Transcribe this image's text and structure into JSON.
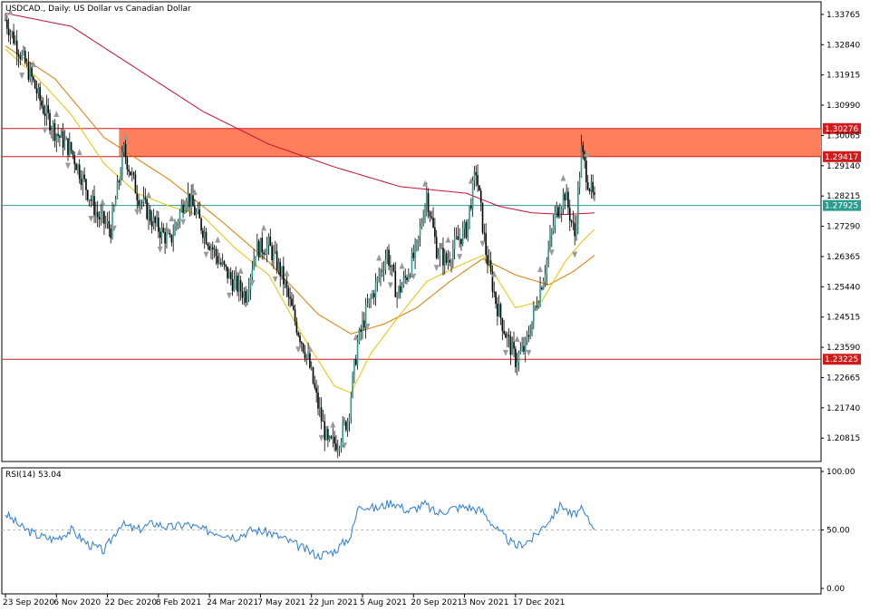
{
  "chart_data": {
    "type": "candlestick",
    "title": "USDCAD., Daily:  US Dollar vs Canadian Dollar",
    "x_ticks": [
      "23 Sep 2020",
      "6 Nov 2020",
      "22 Dec 2020",
      "8 Feb 2021",
      "24 Mar 2021",
      "7 May 2021",
      "22 Jun 2021",
      "5 Aug 2021",
      "20 Sep 2021",
      "3 Nov 2021",
      "17 Dec 2021"
    ],
    "price_ticks": [
      "1.33765",
      "1.32840",
      "1.31915",
      "1.30990",
      "1.30065",
      "1.29140",
      "1.28215",
      "1.27290",
      "1.26365",
      "1.25440",
      "1.24515",
      "1.23590",
      "1.22665",
      "1.21740",
      "1.20815"
    ],
    "ylim": [
      1.201,
      1.3415
    ],
    "levels": [
      {
        "label": "1.30276",
        "value": 1.30276,
        "color": "#d11a1a"
      },
      {
        "label": "1.29417",
        "value": 1.29417,
        "color": "#d11a1a"
      },
      {
        "label": "1.27925",
        "value": 1.27925,
        "color": "#2a9d8f"
      },
      {
        "label": "1.23225",
        "value": 1.23225,
        "color": "#d11a1a"
      }
    ],
    "resistance_zone": {
      "from": 1.29417,
      "to": 1.30276,
      "color": "#ff7f5c"
    },
    "close_path": [
      [
        0,
        1.336
      ],
      [
        8,
        1.327
      ],
      [
        16,
        1.318
      ],
      [
        22,
        1.31
      ],
      [
        30,
        1.302
      ],
      [
        40,
        1.296
      ],
      [
        48,
        1.286
      ],
      [
        56,
        1.276
      ],
      [
        64,
        1.272
      ],
      [
        72,
        1.296
      ],
      [
        80,
        1.283
      ],
      [
        90,
        1.274
      ],
      [
        100,
        1.268
      ],
      [
        110,
        1.283
      ],
      [
        120,
        1.272
      ],
      [
        130,
        1.262
      ],
      [
        138,
        1.256
      ],
      [
        146,
        1.252
      ],
      [
        152,
        1.266
      ],
      [
        160,
        1.267
      ],
      [
        168,
        1.258
      ],
      [
        176,
        1.244
      ],
      [
        184,
        1.232
      ],
      [
        190,
        1.218
      ],
      [
        196,
        1.206
      ],
      [
        202,
        1.207
      ],
      [
        208,
        1.214
      ],
      [
        214,
        1.237
      ],
      [
        220,
        1.248
      ],
      [
        226,
        1.256
      ],
      [
        232,
        1.265
      ],
      [
        238,
        1.252
      ],
      [
        244,
        1.258
      ],
      [
        250,
        1.266
      ],
      [
        256,
        1.283
      ],
      [
        262,
        1.266
      ],
      [
        268,
        1.262
      ],
      [
        274,
        1.268
      ],
      [
        280,
        1.272
      ],
      [
        286,
        1.29
      ],
      [
        292,
        1.265
      ],
      [
        298,
        1.25
      ],
      [
        304,
        1.24
      ],
      [
        310,
        1.232
      ],
      [
        316,
        1.236
      ],
      [
        322,
        1.248
      ],
      [
        328,
        1.26
      ],
      [
        334,
        1.276
      ],
      [
        340,
        1.283
      ],
      [
        346,
        1.27
      ],
      [
        350,
        1.296
      ],
      [
        354,
        1.287
      ],
      [
        358,
        1.28
      ]
    ],
    "ma_series": [
      {
        "color": "#c8102e",
        "points": [
          [
            0,
            1.338
          ],
          [
            40,
            1.334
          ],
          [
            80,
            1.321
          ],
          [
            120,
            1.308
          ],
          [
            160,
            1.298
          ],
          [
            200,
            1.291
          ],
          [
            240,
            1.285
          ],
          [
            280,
            1.283
          ],
          [
            300,
            1.279
          ],
          [
            320,
            1.277
          ],
          [
            340,
            1.2765
          ],
          [
            358,
            1.277
          ]
        ]
      },
      {
        "color": "#e07b00",
        "points": [
          [
            0,
            1.328
          ],
          [
            30,
            1.318
          ],
          [
            60,
            1.3
          ],
          [
            100,
            1.287
          ],
          [
            130,
            1.275
          ],
          [
            160,
            1.262
          ],
          [
            190,
            1.246
          ],
          [
            210,
            1.24
          ],
          [
            230,
            1.243
          ],
          [
            250,
            1.248
          ],
          [
            270,
            1.256
          ],
          [
            290,
            1.263
          ],
          [
            310,
            1.258
          ],
          [
            330,
            1.255
          ],
          [
            345,
            1.259
          ],
          [
            358,
            1.264
          ]
        ]
      },
      {
        "color": "#e8c400",
        "points": [
          [
            0,
            1.327
          ],
          [
            20,
            1.318
          ],
          [
            40,
            1.307
          ],
          [
            60,
            1.292
          ],
          [
            80,
            1.283
          ],
          [
            100,
            1.279
          ],
          [
            120,
            1.276
          ],
          [
            140,
            1.266
          ],
          [
            160,
            1.258
          ],
          [
            180,
            1.24
          ],
          [
            200,
            1.224
          ],
          [
            210,
            1.222
          ],
          [
            222,
            1.234
          ],
          [
            240,
            1.246
          ],
          [
            256,
            1.256
          ],
          [
            272,
            1.26
          ],
          [
            290,
            1.264
          ],
          [
            310,
            1.248
          ],
          [
            326,
            1.25
          ],
          [
            340,
            1.262
          ],
          [
            350,
            1.268
          ],
          [
            358,
            1.272
          ]
        ]
      }
    ],
    "rsi": {
      "label": "RSI(14) 53.04",
      "ticks": [
        "100.00",
        "50.00",
        "0.00"
      ],
      "ylim": [
        0,
        100
      ],
      "level": 50,
      "color": "#2b7bd6",
      "points": [
        [
          0,
          64
        ],
        [
          10,
          52
        ],
        [
          20,
          45
        ],
        [
          30,
          42
        ],
        [
          40,
          50
        ],
        [
          50,
          38
        ],
        [
          60,
          32
        ],
        [
          70,
          55
        ],
        [
          80,
          50
        ],
        [
          90,
          56
        ],
        [
          100,
          52
        ],
        [
          110,
          55
        ],
        [
          120,
          50
        ],
        [
          130,
          48
        ],
        [
          140,
          44
        ],
        [
          150,
          50
        ],
        [
          160,
          48
        ],
        [
          170,
          42
        ],
        [
          180,
          35
        ],
        [
          190,
          28
        ],
        [
          200,
          32
        ],
        [
          210,
          45
        ],
        [
          215,
          72
        ],
        [
          225,
          68
        ],
        [
          235,
          74
        ],
        [
          245,
          66
        ],
        [
          255,
          72
        ],
        [
          262,
          64
        ],
        [
          270,
          68
        ],
        [
          280,
          70
        ],
        [
          290,
          66
        ],
        [
          300,
          48
        ],
        [
          310,
          36
        ],
        [
          320,
          42
        ],
        [
          330,
          58
        ],
        [
          338,
          72
        ],
        [
          344,
          62
        ],
        [
          350,
          67
        ],
        [
          356,
          55
        ],
        [
          358,
          54
        ]
      ]
    }
  }
}
